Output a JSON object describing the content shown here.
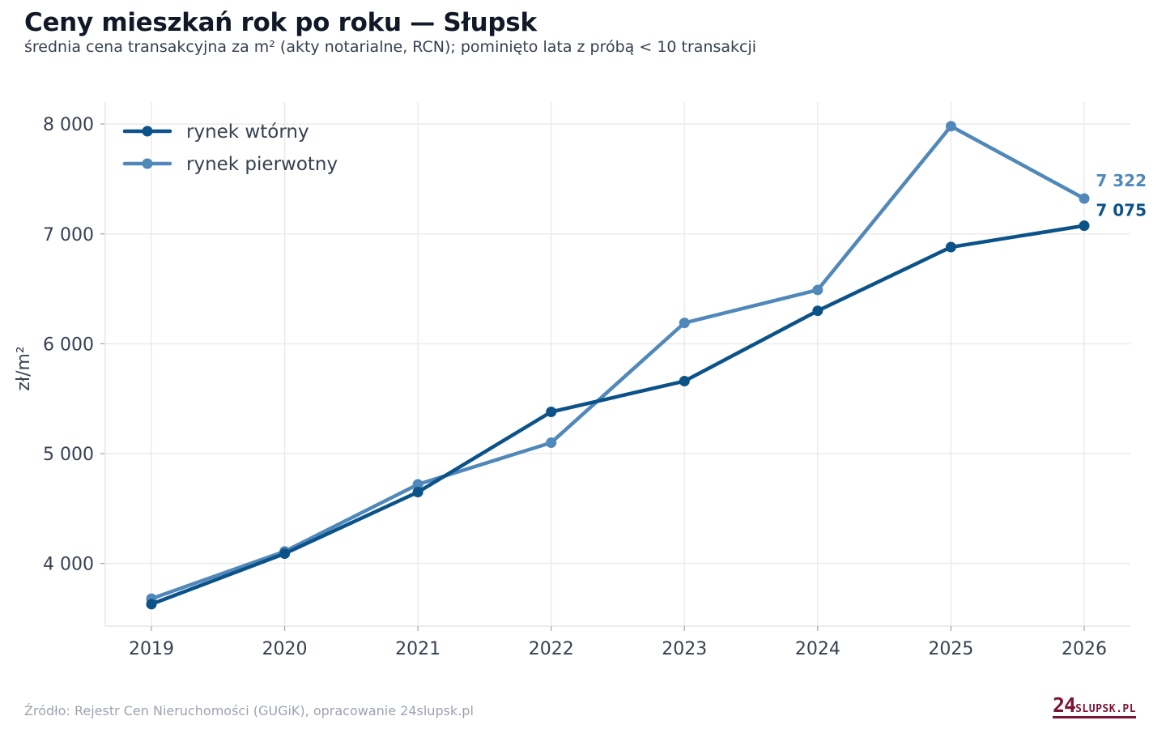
{
  "header": {
    "title": "Ceny mieszkań rok po roku — Słupsk",
    "subtitle": "średnia cena transakcyjna za m² (akty notarialne, RCN); pominięto lata z próbą < 10 transakcji"
  },
  "footer": {
    "source": "Źródło: Rejestr Cen Nieruchomości (GUGiK), opracowanie 24slupsk.pl",
    "logo_main": "24",
    "logo_suffix": "SLUPSK.PL"
  },
  "chart_data": {
    "type": "line",
    "x": [
      2019,
      2020,
      2021,
      2022,
      2023,
      2024,
      2025,
      2026
    ],
    "x_tick_labels": [
      "2019",
      "2020",
      "2021",
      "2022",
      "2023",
      "2024",
      "2025",
      "2026"
    ],
    "ylabel": "zł/m²",
    "ylim": [
      3430,
      8200
    ],
    "y_ticks": [
      4000,
      5000,
      6000,
      7000,
      8000
    ],
    "y_tick_labels": [
      "4 000",
      "5 000",
      "6 000",
      "7 000",
      "8 000"
    ],
    "grid": true,
    "legend_position": "top-left",
    "series": [
      {
        "name": "rynek wtórny",
        "color": "#0b5289",
        "values": [
          3630,
          4090,
          4650,
          5380,
          5660,
          6300,
          6880,
          7075
        ],
        "end_label": "7 075"
      },
      {
        "name": "rynek pierwotny",
        "color": "#5088b9",
        "values": [
          3680,
          4110,
          4720,
          5100,
          6190,
          6490,
          7980,
          7322
        ],
        "end_label": "7 322"
      }
    ]
  }
}
